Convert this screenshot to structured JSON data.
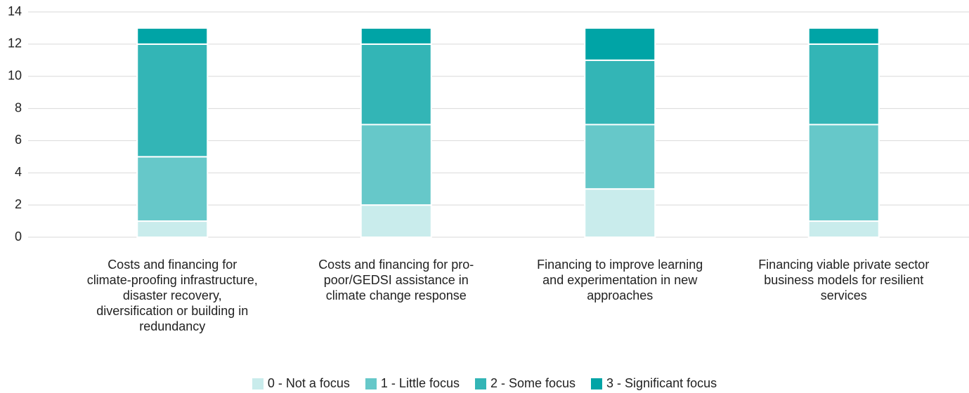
{
  "chart_data": {
    "type": "stacked_bar",
    "categories": [
      "Costs and financing for climate-proofing infrastructure, disaster recovery, diversification or building in redundancy",
      "Costs and financing for pro-poor/GEDSI assistance in climate change response",
      "Financing to improve learning and experimentation in new approaches",
      "Financing viable private sector business models for resilient services"
    ],
    "series": [
      {
        "name": "0 - Not a focus",
        "color": "#c9ecec",
        "values": [
          1,
          2,
          3,
          1
        ]
      },
      {
        "name": "1 - Little focus",
        "color": "#66c8c9",
        "values": [
          4,
          5,
          4,
          6
        ]
      },
      {
        "name": "2 - Some focus",
        "color": "#33b5b6",
        "values": [
          7,
          5,
          4,
          5
        ]
      },
      {
        "name": "3 - Significant focus",
        "color": "#00a4a6",
        "values": [
          1,
          1,
          2,
          1
        ]
      }
    ],
    "ylim": [
      0,
      14
    ],
    "yticks": [
      0,
      2,
      4,
      6,
      8,
      10,
      12,
      14
    ],
    "grid": true,
    "legend": "bottom"
  }
}
